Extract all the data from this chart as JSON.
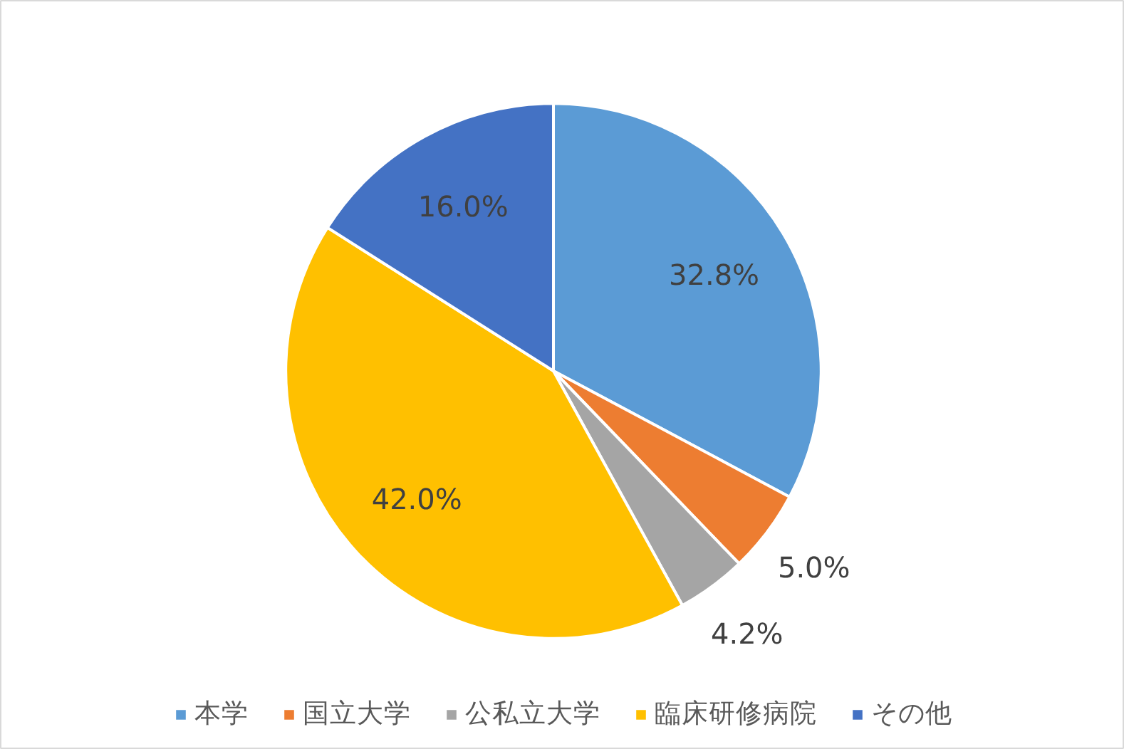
{
  "chart_data": {
    "type": "pie",
    "categories": [
      "本学",
      "国立大学",
      "公私立大学",
      "臨床研修病院",
      "その他"
    ],
    "values": [
      32.8,
      5.0,
      4.2,
      42.0,
      16.0
    ],
    "colors": [
      "#5b9bd5",
      "#ed7d31",
      "#a5a5a5",
      "#ffc000",
      "#4472c4"
    ],
    "value_labels": [
      "32.8%",
      "5.0%",
      "4.2%",
      "42.0%",
      "16.0%"
    ],
    "legend": "bottom"
  }
}
